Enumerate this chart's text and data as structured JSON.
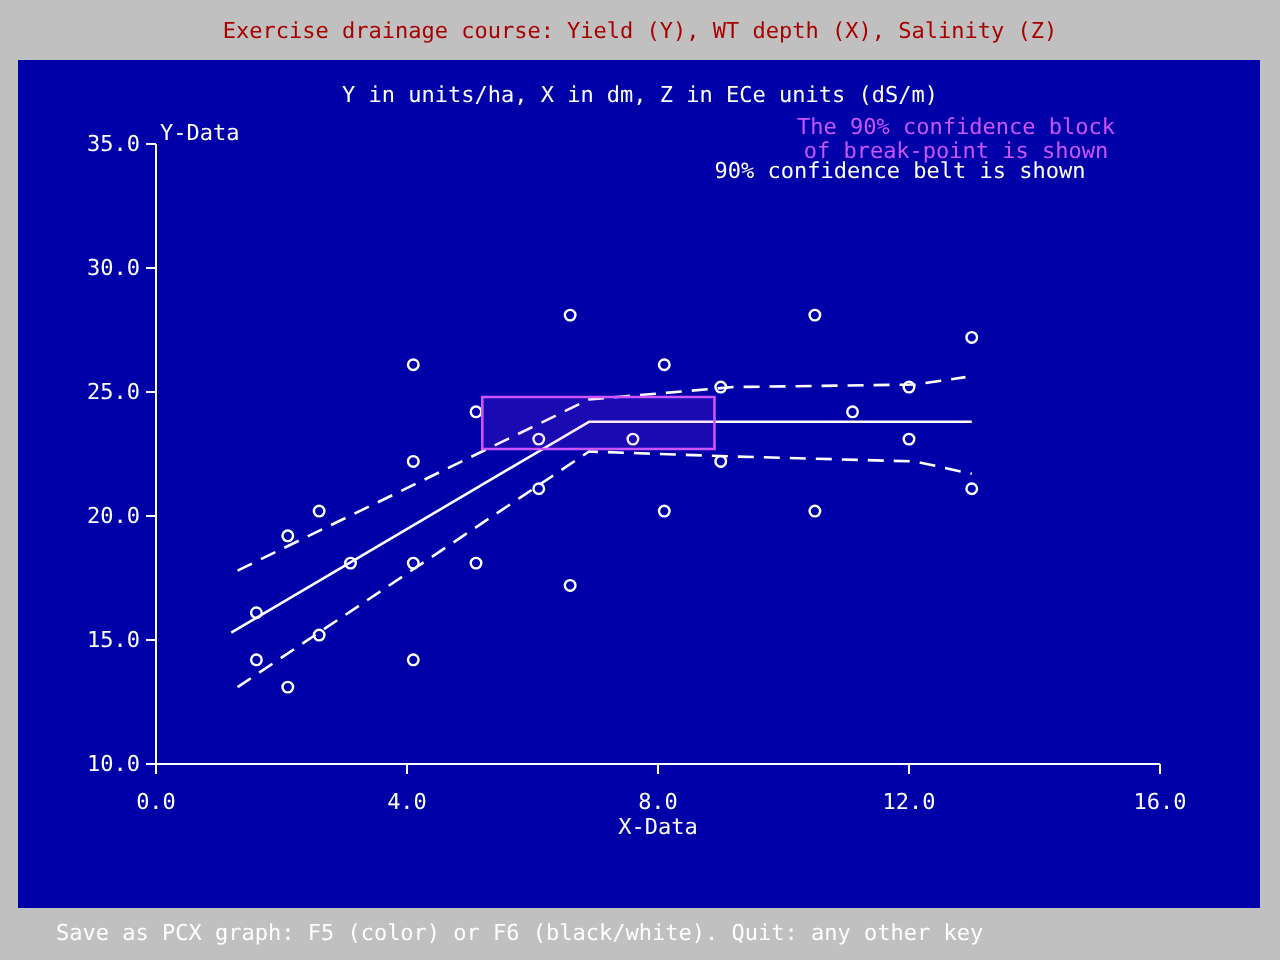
{
  "chart_data": {
    "type": "scatter",
    "title": "Exercise drainage course: Yield (Y), WT depth (X), Salinity (Z)",
    "subtitle": "Y in units/ha, X in dm, Z in ECe units (dS/m)",
    "xlabel": "X-Data",
    "ylabel": "Y-Data",
    "xlim": [
      0,
      16
    ],
    "xticks": [
      {
        "value": 0,
        "label": "0.0"
      },
      {
        "value": 4,
        "label": "4.0"
      },
      {
        "value": 8,
        "label": "8.0"
      },
      {
        "value": 12,
        "label": "12.0"
      },
      {
        "value": 16,
        "label": "16.0"
      }
    ],
    "ylim": [
      10,
      35
    ],
    "yticks": [
      {
        "value": 10,
        "label": "10.0"
      },
      {
        "value": 15,
        "label": "15.0"
      },
      {
        "value": 20,
        "label": "20.0"
      },
      {
        "value": 25,
        "label": "25.0"
      },
      {
        "value": 30,
        "label": "30.0"
      },
      {
        "value": 35,
        "label": "35.0"
      }
    ],
    "grid": false,
    "marker": "circle",
    "series": [
      {
        "color": "#ffffff",
        "x": [
          1.6,
          1.6,
          2.1,
          2.1,
          2.6,
          2.6,
          3.1,
          4.1,
          4.1,
          4.1,
          4.1,
          5.1,
          5.1,
          6.1,
          6.1,
          6.6,
          6.6,
          7.6,
          8.1,
          8.1,
          9.0,
          9.0,
          10.5,
          10.5,
          11.1,
          12.0,
          12.0,
          13.0,
          13.0
        ],
        "values": [
          16.1,
          14.2,
          19.2,
          13.1,
          20.2,
          15.2,
          18.1,
          26.1,
          22.2,
          18.1,
          14.2,
          24.2,
          18.1,
          23.1,
          21.1,
          28.1,
          17.2,
          23.1,
          26.1,
          20.2,
          25.2,
          22.2,
          28.1,
          20.2,
          24.2,
          25.2,
          23.1,
          27.2,
          21.1
        ]
      },
      {
        "type": "line",
        "color": "#ffffff",
        "marker": "none",
        "line_style": "solid",
        "x": [
          1.2,
          6.9,
          13.0
        ],
        "values": [
          15.3,
          23.8,
          23.8
        ]
      },
      {
        "type": "line",
        "color": "#ffffff",
        "marker": "none",
        "line_style": "dashed",
        "x": [
          1.3,
          6.9,
          9.2,
          12.1,
          12.9
        ],
        "values": [
          17.8,
          24.7,
          25.2,
          25.3,
          25.6
        ]
      },
      {
        "type": "line",
        "color": "#ffffff",
        "marker": "none",
        "line_style": "dashed",
        "x": [
          1.3,
          6.9,
          9.2,
          12.1,
          13.0
        ],
        "values": [
          13.1,
          22.6,
          22.4,
          22.2,
          21.7
        ]
      },
      {
        "type": "line",
        "color": "#cc55ff",
        "marker": "none",
        "line_style": "solid",
        "x": [
          5.2,
          8.9
        ],
        "values": [
          null,
          null
        ],
        "lower": [
          22.7,
          22.7
        ],
        "upper": [
          24.8,
          24.8
        ]
      }
    ],
    "annotations": [
      "The 90% confidence block of break-point is shown",
      "90% confidence belt is shown",
      "Save as PCX graph: F5 (color) or F6 (black/white). Quit: any other key"
    ]
  }
}
